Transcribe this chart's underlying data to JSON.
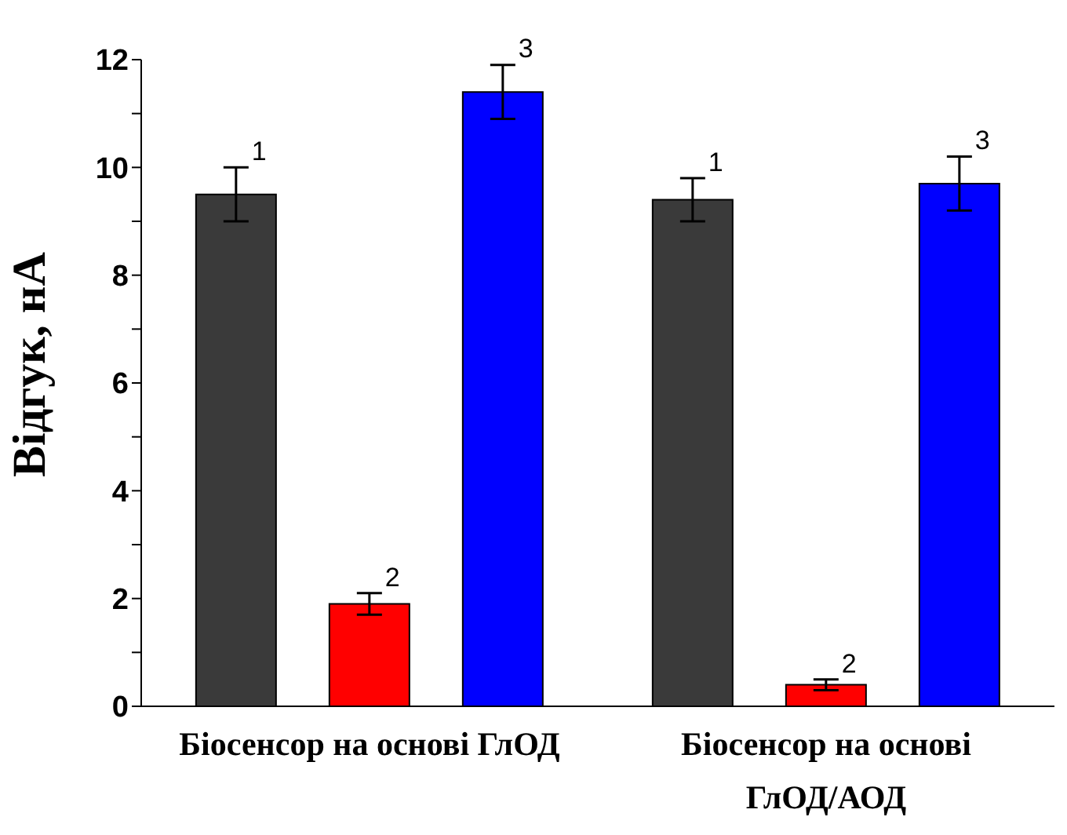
{
  "chart_data": {
    "type": "bar",
    "ylabel": "Відгук, нА",
    "categories": [
      "Біосенсор на основі ГлОД",
      "Біосенсор на основі ГлОД/АОД"
    ],
    "series": [
      {
        "name": "1",
        "color": "#3a3a3a",
        "values": [
          9.5,
          9.4
        ],
        "errors": [
          0.5,
          0.4
        ]
      },
      {
        "name": "2",
        "color": "#ff0000",
        "values": [
          1.9,
          0.4
        ],
        "errors": [
          0.2,
          0.1
        ]
      },
      {
        "name": "3",
        "color": "#0000ff",
        "values": [
          11.4,
          9.7
        ],
        "errors": [
          0.5,
          0.5
        ]
      }
    ],
    "ylim": [
      0,
      12
    ],
    "yticks": [
      0,
      {
        "value": 1,
        "label": null
      },
      2,
      {
        "value": 3,
        "label": null
      },
      4,
      {
        "value": 5,
        "label": null
      },
      6,
      {
        "value": 7,
        "label": null
      },
      8,
      {
        "value": 9,
        "label": null
      },
      10,
      {
        "value": 11,
        "label": null
      },
      12
    ],
    "grid": false,
    "legend": false
  }
}
